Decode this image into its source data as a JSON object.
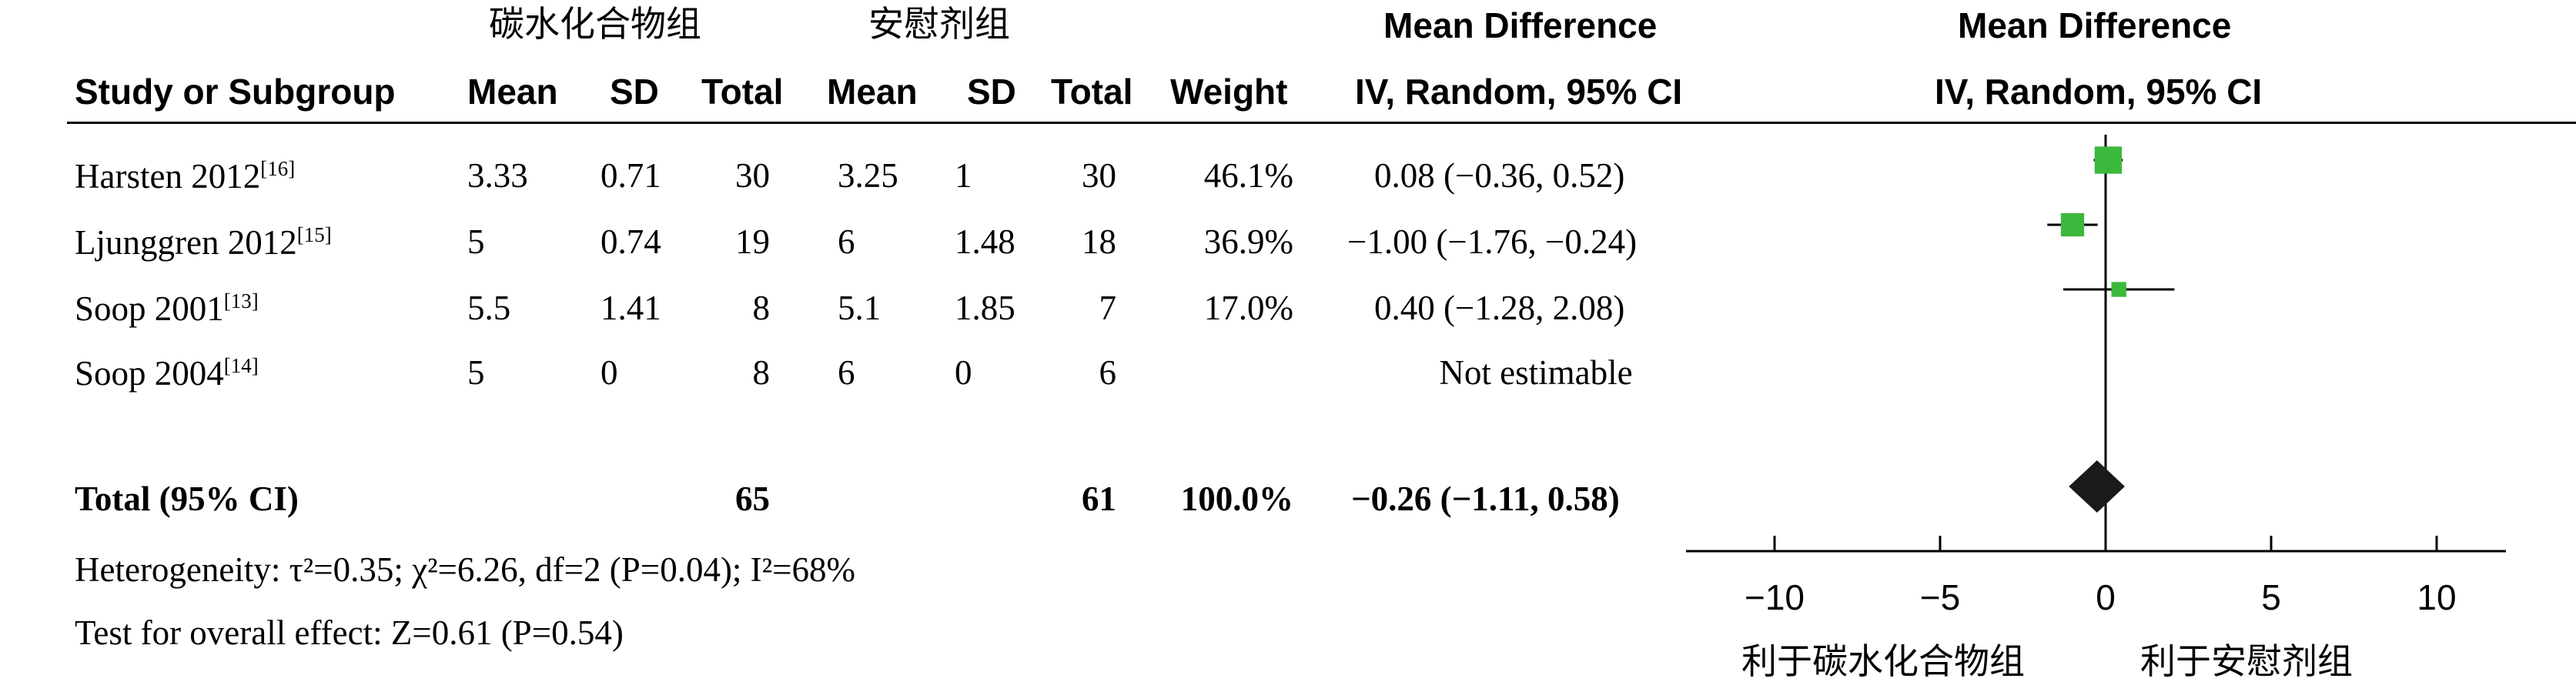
{
  "header": {
    "group1": "碳水化合物组",
    "group2": "安慰剂组",
    "mean_diff_table": "Mean Difference",
    "mean_diff_plot": "Mean Difference",
    "study_col": "Study or Subgroup",
    "mean1": "Mean",
    "sd1": "SD",
    "total1": "Total",
    "mean2": "Mean",
    "sd2": "SD",
    "total2": "Total",
    "weight": "Weight",
    "ci_table": "IV, Random, 95% CI",
    "ci_plot": "IV, Random, 95% CI"
  },
  "studies": [
    {
      "name": "Harsten 2012",
      "ref": "[16]",
      "mean1": "3.33",
      "sd1": "0.71",
      "total1": "30",
      "mean2": "3.25",
      "sd2": "1",
      "total2": "30",
      "weight": "46.1%",
      "ci": "0.08 (−0.36, 0.52)"
    },
    {
      "name": "Ljunggren 2012",
      "ref": "[15]",
      "mean1": "5",
      "sd1": "0.74",
      "total1": "19",
      "mean2": "6",
      "sd2": "1.48",
      "total2": "18",
      "weight": "36.9%",
      "ci": "−1.00 (−1.76, −0.24)"
    },
    {
      "name": "Soop 2001",
      "ref": "[13]",
      "mean1": "5.5",
      "sd1": "1.41",
      "total1": "8",
      "mean2": "5.1",
      "sd2": "1.85",
      "total2": "7",
      "weight": "17.0%",
      "ci": "0.40 (−1.28, 2.08)"
    },
    {
      "name": "Soop 2004",
      "ref": "[14]",
      "mean1": "5",
      "sd1": "0",
      "total1": "8",
      "mean2": "6",
      "sd2": "0",
      "total2": "6",
      "weight": "",
      "ci": "Not estimable"
    }
  ],
  "total": {
    "label": "Total (95% CI)",
    "total1": "65",
    "total2": "61",
    "weight": "100.0%",
    "ci": "−0.26 (−1.11, 0.58)"
  },
  "footer": {
    "heterogeneity": "Heterogeneity: τ²=0.35; χ²=6.26, df=2 (P=0.04); I²=68%",
    "overall": "Test for overall effect: Z=0.61 (P=0.54)"
  },
  "favor": {
    "left": "利于碳水化合物组",
    "right": "利于安慰剂组"
  },
  "colors": {
    "study_marker": "#3cb83c",
    "total_marker": "#1a1a1a",
    "lines": "#000000"
  },
  "chart_data": {
    "type": "forest",
    "xlim": [
      -10,
      10
    ],
    "ticks": [
      -10,
      -5,
      0,
      5,
      10
    ],
    "tick_labels": [
      "−10",
      "−5",
      "0",
      "5",
      "10"
    ],
    "studies": [
      {
        "name": "Harsten 2012",
        "md": 0.08,
        "lo": -0.36,
        "hi": 0.52,
        "weight": 46.1
      },
      {
        "name": "Ljunggren 2012",
        "md": -1.0,
        "lo": -1.76,
        "hi": -0.24,
        "weight": 36.9
      },
      {
        "name": "Soop 2001",
        "md": 0.4,
        "lo": -1.28,
        "hi": 2.08,
        "weight": 17.0
      }
    ],
    "pooled": {
      "md": -0.26,
      "lo": -1.11,
      "hi": 0.58
    }
  }
}
